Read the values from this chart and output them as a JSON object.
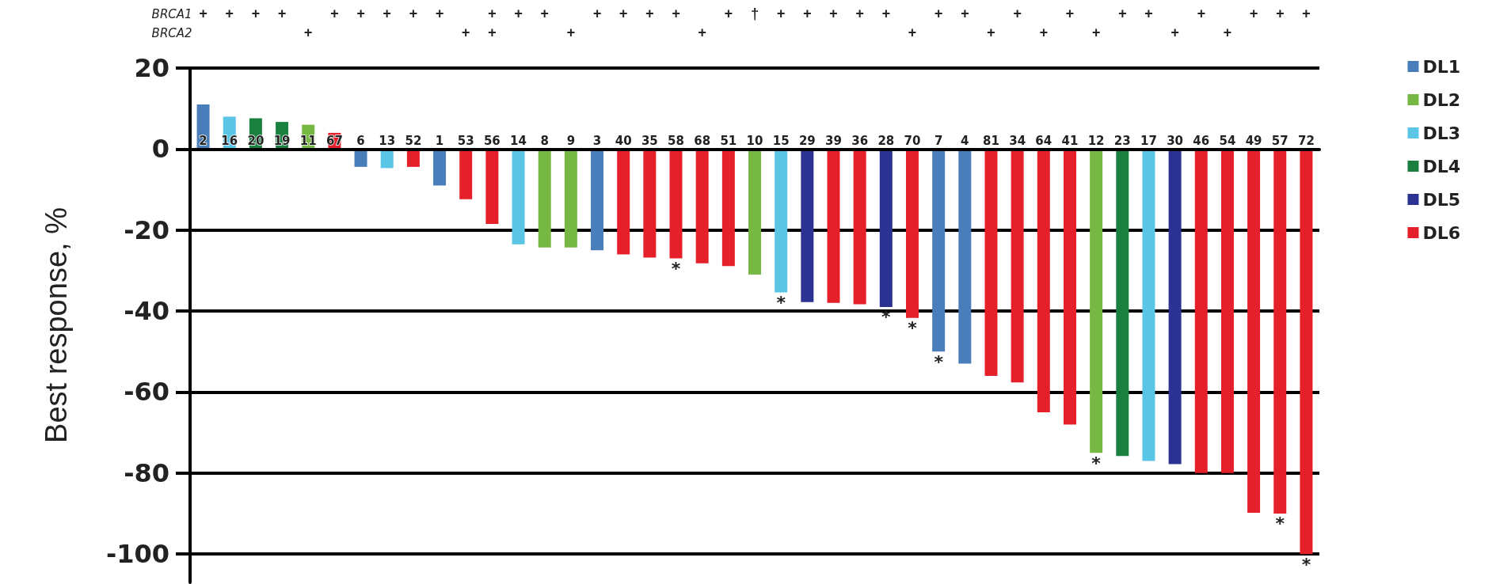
{
  "chart_data": {
    "type": "bar",
    "ylabel": "Best response, %",
    "categories": [
      "2",
      "16",
      "20",
      "19",
      "11",
      "67",
      "6",
      "13",
      "52",
      "1",
      "53",
      "56",
      "14",
      "8",
      "9",
      "3",
      "40",
      "35",
      "58",
      "68",
      "51",
      "10",
      "15",
      "29",
      "39",
      "36",
      "28",
      "70",
      "7",
      "4",
      "81",
      "34",
      "64",
      "41",
      "12",
      "23",
      "17",
      "30",
      "46",
      "54",
      "49",
      "57",
      "72"
    ],
    "series": [
      {
        "name": "DL1",
        "color": "#4a7ebb",
        "values": [
          11,
          null,
          null,
          null,
          null,
          null,
          -4.4,
          null,
          null,
          -9,
          null,
          null,
          null,
          null,
          null,
          -25,
          null,
          null,
          null,
          null,
          null,
          null,
          null,
          null,
          null,
          null,
          null,
          null,
          -50,
          -53,
          null,
          null,
          null,
          null,
          null,
          null,
          null,
          null,
          null,
          null,
          null,
          null,
          null
        ]
      },
      {
        "name": "DL2",
        "color": "#76b843",
        "values": [
          null,
          null,
          null,
          null,
          6,
          null,
          null,
          null,
          null,
          null,
          null,
          null,
          null,
          -24.3,
          -24.3,
          null,
          null,
          null,
          null,
          null,
          null,
          -31,
          null,
          null,
          null,
          null,
          null,
          null,
          null,
          null,
          null,
          null,
          null,
          null,
          -75,
          null,
          null,
          null,
          null,
          null,
          null,
          null,
          null
        ]
      },
      {
        "name": "DL3",
        "color": "#5bc5e6",
        "values": [
          null,
          8,
          null,
          null,
          null,
          null,
          null,
          -4.7,
          null,
          null,
          null,
          null,
          -23.5,
          null,
          null,
          null,
          null,
          null,
          null,
          null,
          null,
          null,
          -35.4,
          null,
          null,
          null,
          null,
          null,
          null,
          null,
          null,
          null,
          null,
          null,
          null,
          null,
          -77,
          null,
          null,
          null,
          null,
          null,
          null
        ]
      },
      {
        "name": "DL4",
        "color": "#1a8040",
        "values": [
          null,
          null,
          7.6,
          6.7,
          null,
          null,
          null,
          null,
          null,
          null,
          null,
          null,
          null,
          null,
          null,
          null,
          null,
          null,
          null,
          null,
          null,
          null,
          null,
          null,
          null,
          null,
          null,
          null,
          null,
          null,
          null,
          null,
          null,
          null,
          null,
          -75.8,
          null,
          null,
          null,
          null,
          null,
          null,
          null
        ]
      },
      {
        "name": "DL5",
        "color": "#2b3292",
        "values": [
          null,
          null,
          null,
          null,
          null,
          null,
          null,
          null,
          null,
          null,
          null,
          null,
          null,
          null,
          null,
          null,
          null,
          null,
          null,
          null,
          null,
          null,
          null,
          -37.8,
          null,
          null,
          -39,
          null,
          null,
          null,
          null,
          null,
          null,
          null,
          null,
          null,
          null,
          -77.8,
          null,
          null,
          null,
          null,
          null
        ]
      },
      {
        "name": "DL6",
        "color": "#e6202a",
        "values": [
          null,
          null,
          null,
          null,
          null,
          4,
          null,
          null,
          -4.4,
          null,
          -12.4,
          -18.5,
          null,
          null,
          null,
          null,
          -26,
          -26.8,
          -27,
          -28.2,
          -28.9,
          null,
          null,
          null,
          -38,
          -38.3,
          null,
          -41.7,
          null,
          null,
          -56,
          -57.6,
          -65,
          -68,
          null,
          null,
          null,
          null,
          -80,
          -80,
          -89.8,
          -90,
          -100
        ]
      }
    ],
    "ylim": [
      -107,
      20
    ],
    "yticks": [
      -100,
      -80,
      -60,
      -40,
      -20,
      0,
      20
    ],
    "grid": "y",
    "legend": "right",
    "annotations": [
      "BRCA1",
      "BRCA2",
      "++++ +++++ +++ ++++ +†+++++ ++ + + ++ + +++",
      "    +     ++  +    +       +  + + +  + +   ",
      {
        "text": "*",
        "x": "58",
        "y": -27
      },
      {
        "text": "*",
        "x": "15",
        "y": -35.4
      },
      {
        "text": "*",
        "x": "28",
        "y": -39
      },
      {
        "text": "*",
        "x": "70",
        "y": -41.7
      },
      {
        "text": "*",
        "x": "7",
        "y": -50
      },
      {
        "text": "*",
        "x": "12",
        "y": -75
      },
      {
        "text": "*",
        "x": "57",
        "y": -90
      },
      {
        "text": "*",
        "x": "72",
        "y": -100
      }
    ]
  }
}
